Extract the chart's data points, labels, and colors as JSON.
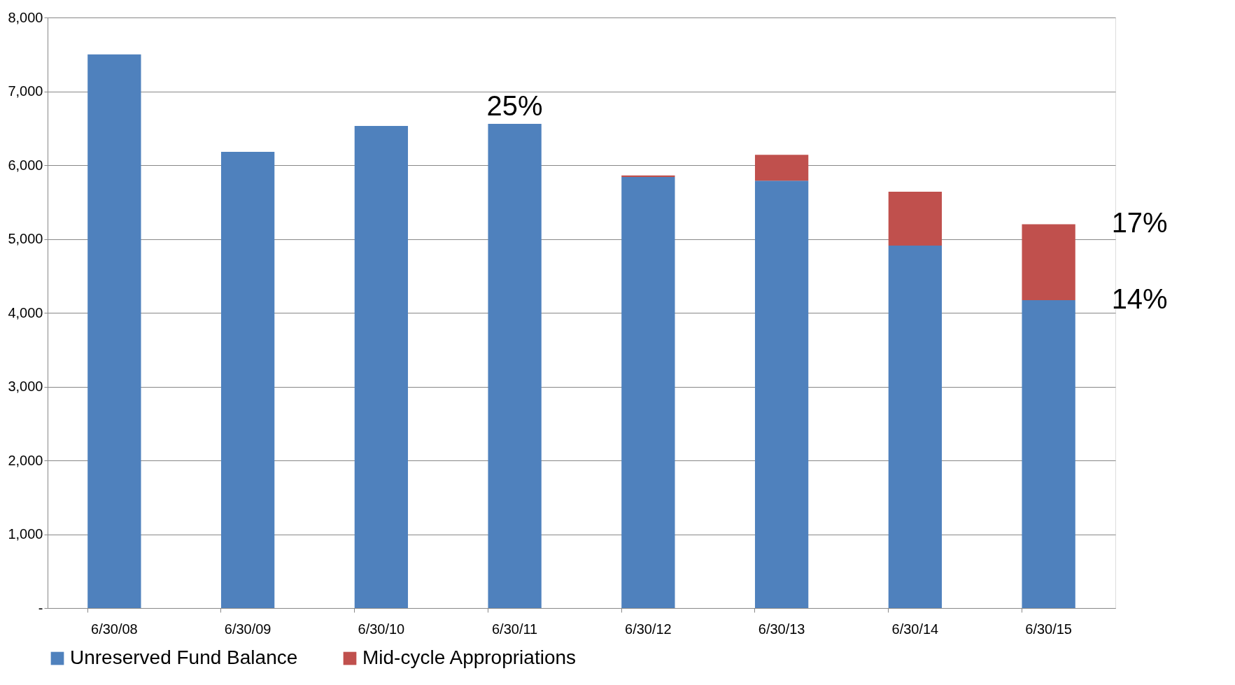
{
  "chart_data": {
    "type": "bar",
    "stacked": true,
    "categories": [
      "6/30/08",
      "6/30/09",
      "6/30/10",
      "6/30/11",
      "6/30/12",
      "6/30/13",
      "6/30/14",
      "6/30/15"
    ],
    "series": [
      {
        "name": "Unreserved Fund Balance",
        "color": "#4f81bd",
        "values": [
          7500,
          6180,
          6530,
          6560,
          5840,
          5790,
          4910,
          4170
        ]
      },
      {
        "name": "Mid-cycle Appropriations",
        "color": "#c0504d",
        "values": [
          null,
          null,
          null,
          null,
          20,
          350,
          730,
          1030
        ]
      }
    ],
    "ylim": [
      0,
      8000
    ],
    "yticks": [
      {
        "value": 0,
        "label": "-"
      },
      {
        "value": 1000,
        "label": "1,000"
      },
      {
        "value": 2000,
        "label": "2,000"
      },
      {
        "value": 3000,
        "label": "3,000"
      },
      {
        "value": 4000,
        "label": "4,000"
      },
      {
        "value": 5000,
        "label": "5,000"
      },
      {
        "value": 6000,
        "label": "6,000"
      },
      {
        "value": 7000,
        "label": "7,000"
      },
      {
        "value": 8000,
        "label": "8,000"
      }
    ],
    "grid": "y",
    "legend": "bottom",
    "annotations": [
      {
        "text": "25%",
        "x": "6/30/11",
        "y": 6560
      },
      {
        "text": "17%",
        "x": "6/30/15",
        "y": 5200
      },
      {
        "text": "14%",
        "x": "6/30/15",
        "y": 4170
      }
    ]
  }
}
